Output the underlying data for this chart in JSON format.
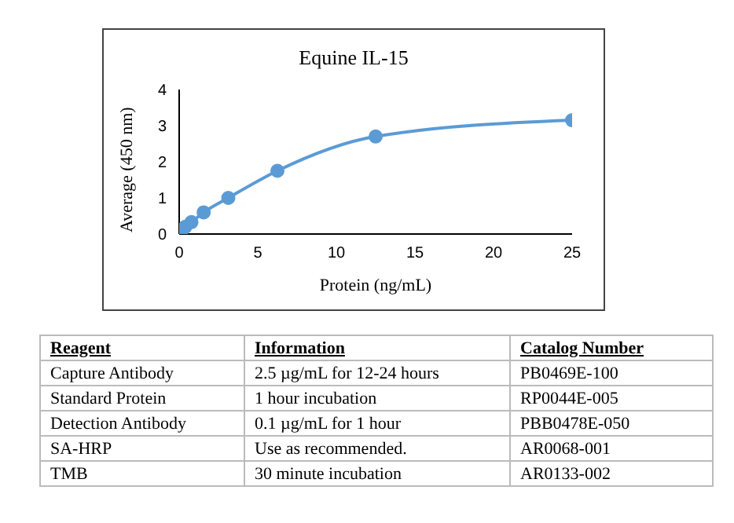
{
  "chart_data": [
    {
      "type": "line",
      "title": "Equine IL-15",
      "xlabel": "Protein (ng/mL)",
      "ylabel": "Average (450 nm)",
      "x": [
        0,
        0.195,
        0.39,
        0.78,
        1.56,
        3.125,
        6.25,
        12.5,
        25
      ],
      "series": [
        {
          "color": "#5b9bd5",
          "values": [
            0.05,
            0.12,
            0.2,
            0.33,
            0.6,
            1.0,
            1.75,
            2.7,
            3.15
          ]
        }
      ],
      "xlim": [
        0,
        25
      ],
      "xticks": [
        0,
        5,
        10,
        15,
        20,
        25
      ],
      "ylim": [
        0,
        4
      ],
      "yticks": [
        0,
        1,
        2,
        3,
        4
      ],
      "grid": false,
      "legend": false,
      "marker": "circle",
      "line_style": "solid"
    },
    {
      "type": "other",
      "annotations": [
        "Reagent",
        "Information",
        "Catalog Number",
        "Capture Antibody",
        "2.5 µg/mL for 12-24 hours",
        "PB0469E-100",
        "Standard Protein",
        "1 hour incubation",
        "RP0044E-005",
        "Detection Antibody",
        "0.1 µg/mL for 1 hour",
        "PBB0478E-050",
        "SA-HRP",
        "Use as recommended.",
        "AR0068-001",
        "TMB",
        "30 minute incubation",
        "AR0133-002"
      ]
    }
  ]
}
